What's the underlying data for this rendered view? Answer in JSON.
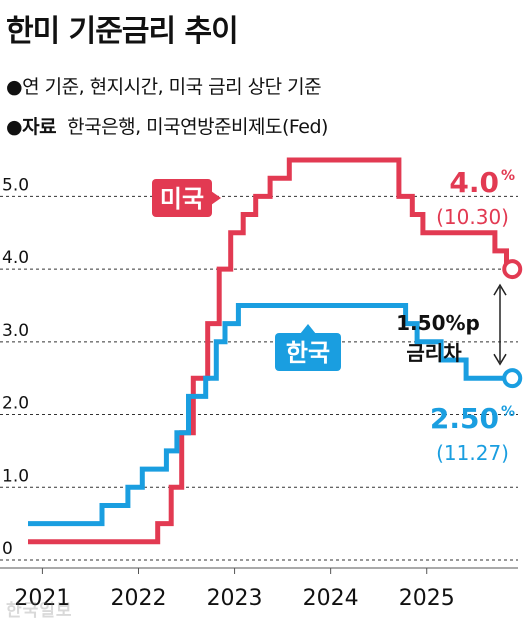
{
  "header": {
    "title": "한미 기준금리 추이",
    "note_bullet": "●",
    "note": "연 기준, 현지시간, 미국 금리 상단 기준",
    "source_bullet": "●",
    "source_label": "자료",
    "source": "한국은행, 미국연방준비제도(Fed)"
  },
  "watermark": "한국일보",
  "colors": {
    "us": "#e23a52",
    "korea": "#1a9ee0",
    "grid": "#333333",
    "text": "#111111"
  },
  "chart_data": {
    "type": "line",
    "step": true,
    "ylim": [
      0,
      5.5
    ],
    "xlim": [
      2020.85,
      2025.95
    ],
    "y_ticks": [
      {
        "value": 0,
        "label": "0"
      },
      {
        "value": 1.0,
        "label": "1.0"
      },
      {
        "value": 2.0,
        "label": "2.0"
      },
      {
        "value": 3.0,
        "label": "3.0"
      },
      {
        "value": 4.0,
        "label": "4.0"
      },
      {
        "value": 5.0,
        "label": "5.0"
      }
    ],
    "x_ticks": [
      {
        "value": 2021,
        "label": "2021"
      },
      {
        "value": 2022,
        "label": "2022"
      },
      {
        "value": 2023,
        "label": "2023"
      },
      {
        "value": 2024,
        "label": "2024"
      },
      {
        "value": 2025,
        "label": "2025"
      }
    ],
    "grid": "horizontal-dashed",
    "series": [
      {
        "name": "미국",
        "key": "us",
        "color": "#e23a52",
        "points": [
          [
            2020.85,
            0.25
          ],
          [
            2022.2,
            0.25
          ],
          [
            2022.2,
            0.5
          ],
          [
            2022.34,
            0.5
          ],
          [
            2022.34,
            1.0
          ],
          [
            2022.45,
            1.0
          ],
          [
            2022.45,
            1.75
          ],
          [
            2022.57,
            1.75
          ],
          [
            2022.57,
            2.5
          ],
          [
            2022.72,
            2.5
          ],
          [
            2022.72,
            3.25
          ],
          [
            2022.84,
            3.25
          ],
          [
            2022.84,
            4.0
          ],
          [
            2022.96,
            4.0
          ],
          [
            2022.96,
            4.5
          ],
          [
            2023.09,
            4.5
          ],
          [
            2023.09,
            4.75
          ],
          [
            2023.22,
            4.75
          ],
          [
            2023.22,
            5.0
          ],
          [
            2023.37,
            5.0
          ],
          [
            2023.37,
            5.25
          ],
          [
            2023.57,
            5.25
          ],
          [
            2023.57,
            5.5
          ],
          [
            2024.71,
            5.5
          ],
          [
            2024.71,
            5.0
          ],
          [
            2024.85,
            5.0
          ],
          [
            2024.85,
            4.75
          ],
          [
            2024.96,
            4.75
          ],
          [
            2024.96,
            4.5
          ],
          [
            2025.71,
            4.5
          ],
          [
            2025.71,
            4.25
          ],
          [
            2025.83,
            4.25
          ],
          [
            2025.83,
            4.0
          ],
          [
            2025.89,
            4.0
          ]
        ],
        "end_value_label": "4.0",
        "end_value_unit": "%",
        "end_date_label": "(10.30)"
      },
      {
        "name": "한국",
        "key": "korea",
        "color": "#1a9ee0",
        "points": [
          [
            2020.85,
            0.5
          ],
          [
            2021.62,
            0.5
          ],
          [
            2021.62,
            0.75
          ],
          [
            2021.89,
            0.75
          ],
          [
            2021.89,
            1.0
          ],
          [
            2022.04,
            1.0
          ],
          [
            2022.04,
            1.25
          ],
          [
            2022.29,
            1.25
          ],
          [
            2022.29,
            1.5
          ],
          [
            2022.4,
            1.5
          ],
          [
            2022.4,
            1.75
          ],
          [
            2022.52,
            1.75
          ],
          [
            2022.52,
            2.25
          ],
          [
            2022.7,
            2.25
          ],
          [
            2022.7,
            2.5
          ],
          [
            2022.81,
            2.5
          ],
          [
            2022.81,
            3.0
          ],
          [
            2022.9,
            3.0
          ],
          [
            2022.9,
            3.25
          ],
          [
            2023.04,
            3.25
          ],
          [
            2023.04,
            3.5
          ],
          [
            2024.78,
            3.5
          ],
          [
            2024.78,
            3.25
          ],
          [
            2024.9,
            3.25
          ],
          [
            2024.9,
            3.0
          ],
          [
            2025.15,
            3.0
          ],
          [
            2025.15,
            2.75
          ],
          [
            2025.41,
            2.75
          ],
          [
            2025.41,
            2.5
          ],
          [
            2025.89,
            2.5
          ]
        ],
        "end_value_label": "2.50",
        "end_value_unit": "%",
        "end_date_label": "(11.27)"
      }
    ],
    "annotations": {
      "gap_line1": "1.50%p",
      "gap_line2": "금리차"
    }
  }
}
